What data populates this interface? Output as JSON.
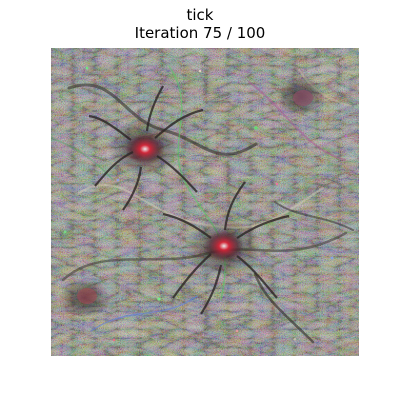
{
  "figure": {
    "class_name": "tick",
    "iteration_text": "Iteration 75 / 100"
  },
  "image": {
    "subject": "feature visualization of tick class",
    "palette": {
      "base": "#77745f",
      "dark": "#2f2a27",
      "green": "#57c765",
      "magenta": "#b55a93",
      "blue": "#5c7ee0",
      "red": "#d82a39",
      "light": "#c7c2aa"
    }
  }
}
